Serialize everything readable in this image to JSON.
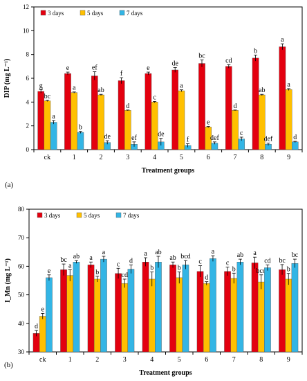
{
  "chart_data": [
    {
      "panel_label": "(a)",
      "type": "bar",
      "ylabel": "DIP  (mg L⁻¹)",
      "xlabel": "Treatment groups",
      "ylim": [
        0,
        12
      ],
      "yticks": [
        0,
        2,
        4,
        6,
        8,
        10,
        12
      ],
      "categories": [
        "ck",
        "1",
        "2",
        "3",
        "4",
        "5",
        "6",
        "7",
        "8",
        "9"
      ],
      "legend_position": "top-left",
      "series": [
        {
          "name": "3 days",
          "color": "#e3000f",
          "values": [
            4.9,
            6.4,
            6.2,
            5.8,
            6.4,
            6.7,
            7.25,
            7.0,
            7.7,
            8.65
          ],
          "errors": [
            0.15,
            0.12,
            0.35,
            0.25,
            0.12,
            0.2,
            0.3,
            0.15,
            0.25,
            0.25
          ],
          "labels": [
            "g",
            "e",
            "ef",
            "f",
            "e",
            "de",
            "bc",
            "cd",
            "b",
            "a"
          ]
        },
        {
          "name": "5 days",
          "color": "#ffc000",
          "values": [
            4.1,
            4.8,
            4.6,
            3.3,
            4.0,
            4.95,
            1.9,
            3.3,
            4.6,
            5.05
          ],
          "errors": [
            0.05,
            0.05,
            0.05,
            0.03,
            0.05,
            0.08,
            0.05,
            0.03,
            0.05,
            0.08
          ],
          "labels": [
            "bc",
            "a",
            "ab",
            "d",
            "c",
            "a",
            "e",
            "d",
            "ab",
            "a"
          ]
        },
        {
          "name": "7 days",
          "color": "#33b5e5",
          "values": [
            2.3,
            1.45,
            0.6,
            0.45,
            0.65,
            0.35,
            0.55,
            0.9,
            0.45,
            0.65
          ],
          "errors": [
            0.15,
            0.08,
            0.15,
            0.2,
            0.3,
            0.15,
            0.1,
            0.15,
            0.1,
            0.05
          ],
          "labels": [
            "a",
            "b",
            "de",
            "ef",
            "de",
            "f",
            "def",
            "c",
            "def",
            "d"
          ]
        }
      ]
    },
    {
      "panel_label": "(b)",
      "type": "bar",
      "ylabel": "I_Mn (mg L⁻¹)",
      "xlabel": "Treatment groups",
      "ylim": [
        30,
        80
      ],
      "yticks": [
        30,
        40,
        50,
        60,
        70,
        80
      ],
      "categories": [
        "ck",
        "1",
        "2",
        "3",
        "4",
        "5",
        "6",
        "7",
        "8",
        "9"
      ],
      "legend_position": "top-left",
      "series": [
        {
          "name": "3 days",
          "color": "#e3000f",
          "values": [
            36.5,
            58.8,
            60.5,
            57.5,
            61.5,
            60.5,
            58.2,
            58.2,
            61.2,
            58.8
          ],
          "errors": [
            1.0,
            2.0,
            1.0,
            1.8,
            1.5,
            1.0,
            2.0,
            1.5,
            2.0,
            1.8
          ],
          "labels": [
            "d",
            "bc",
            "a",
            "c",
            "a",
            "ab",
            "c",
            "c",
            "a",
            "bc"
          ]
        },
        {
          "name": "5 days",
          "color": "#ffc000",
          "values": [
            42.5,
            56.8,
            55.5,
            54.0,
            55.5,
            56.0,
            54.0,
            55.8,
            54.5,
            55.5
          ],
          "errors": [
            1.0,
            2.0,
            1.0,
            1.5,
            2.5,
            2.0,
            0.6,
            1.8,
            2.5,
            2.0
          ],
          "labels": [
            "e",
            "a",
            "b",
            "cd",
            "b",
            "b",
            "d",
            "b",
            "bcd",
            "b"
          ]
        },
        {
          "name": "7 days",
          "color": "#33b5e5",
          "values": [
            56.0,
            61.5,
            62.5,
            59.0,
            61.5,
            60.5,
            62.7,
            61.5,
            59.5,
            61.0
          ],
          "errors": [
            1.0,
            0.5,
            1.0,
            1.5,
            2.0,
            1.5,
            1.0,
            1.0,
            1.0,
            1.5
          ],
          "labels": [
            "e",
            "ab",
            "a",
            "d",
            "ab",
            "bcd",
            "a",
            "ab",
            "cd",
            "bc"
          ]
        }
      ]
    }
  ]
}
